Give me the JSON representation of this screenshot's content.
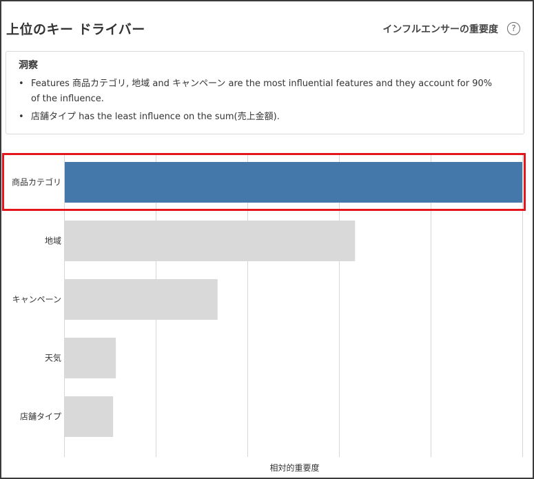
{
  "header": {
    "title": "上位のキー ドライバー",
    "toolbar_label": "インフルエンサーの重要度",
    "help_icon": "?"
  },
  "insights": {
    "title": "洞察",
    "bullets": [
      {
        "line1": "Features 商品カテゴリ, 地域 and キャンペーン are the most influential features and they account for 90%",
        "line2": "of the influence."
      },
      {
        "line1": "店舗タイプ has the least influence on the sum(売上金額)."
      }
    ]
  },
  "colors": {
    "highlight_bar": "#4477aa",
    "default_bar": "#d9d9d9",
    "gridline": "#d6d6d6",
    "selection_border": "#e4151b"
  },
  "chart_data": {
    "type": "bar",
    "orientation": "horizontal",
    "categories": [
      "商品カテゴリ",
      "地域",
      "キャンペーン",
      "天気",
      "店舗タイプ"
    ],
    "values": [
      1.0,
      0.635,
      0.335,
      0.113,
      0.107
    ],
    "highlighted_index": 0,
    "xlabel": "相対的重要度",
    "ylabel": "",
    "xlim": [
      0,
      1.0
    ],
    "grid": true
  }
}
